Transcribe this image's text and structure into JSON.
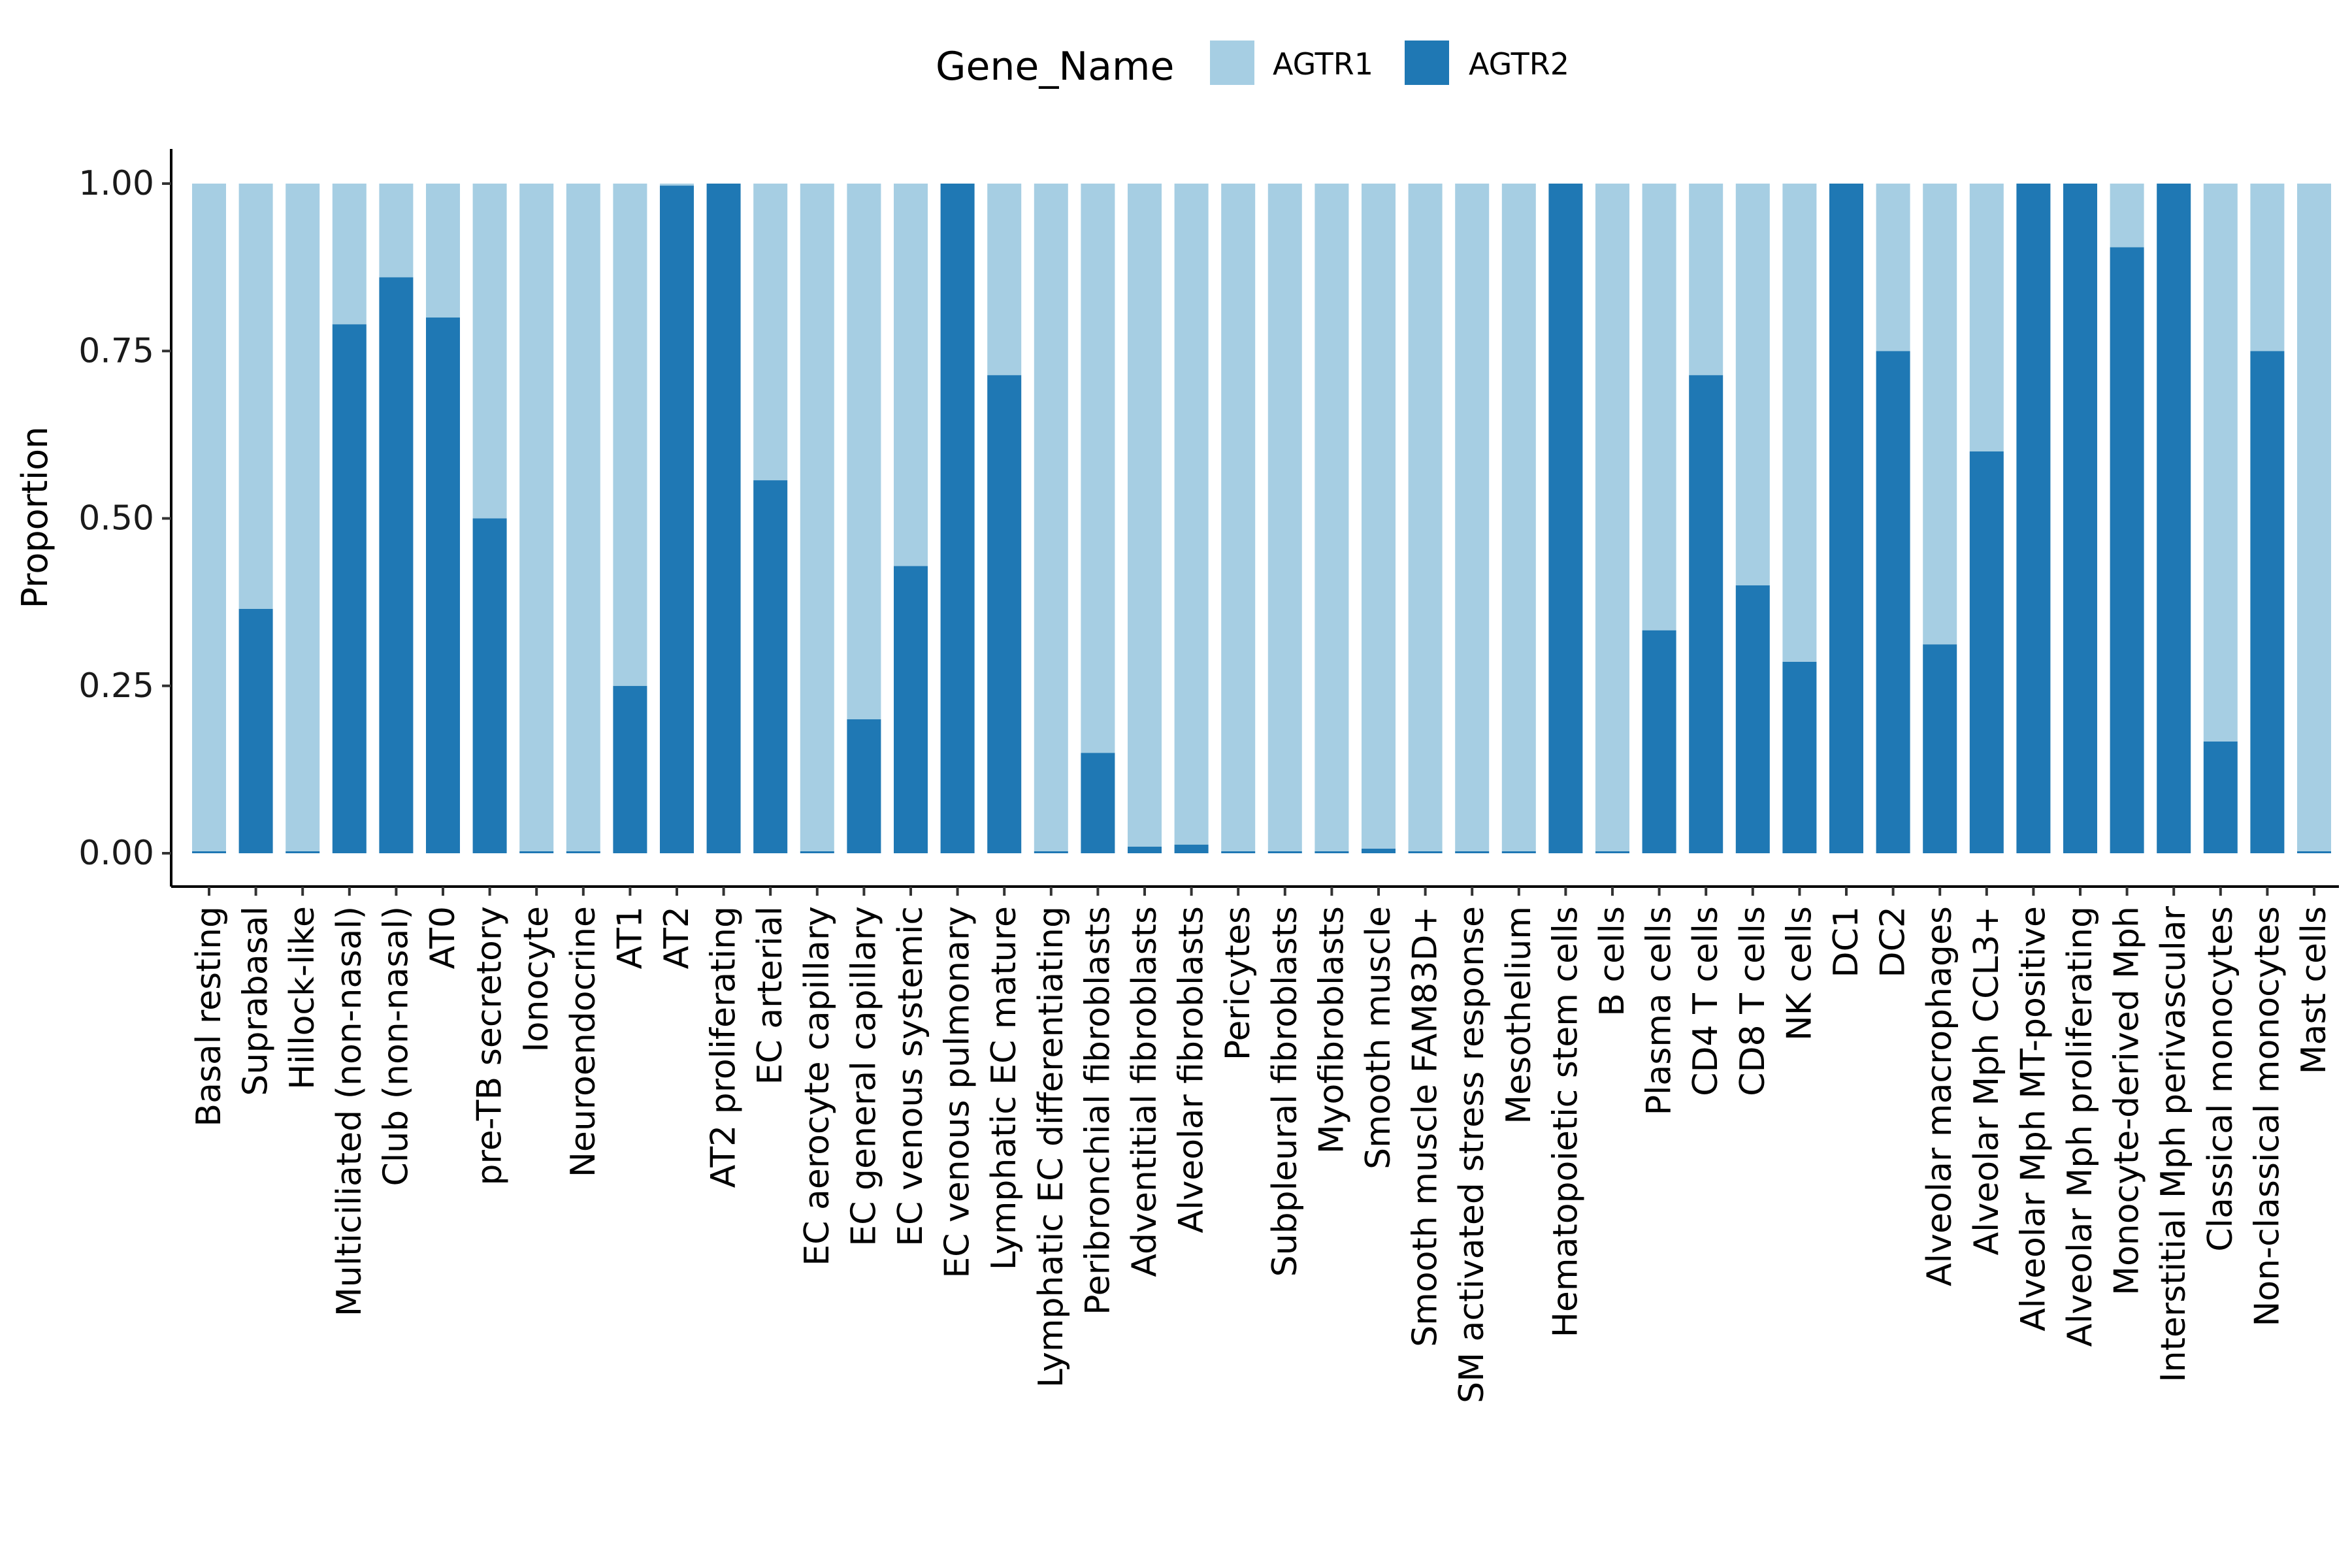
{
  "colors": {
    "AGTR1": "#A6CEE3",
    "AGTR2": "#1F78B4"
  },
  "chart_data": {
    "type": "bar",
    "stacked": true,
    "ylabel": "Proportion",
    "xlabel": "",
    "ylim": [
      0,
      1
    ],
    "yticks": [
      "0.00",
      "0.25",
      "0.50",
      "0.75",
      "1.00"
    ],
    "grid": false,
    "legend": {
      "title": "Gene_Name",
      "position": "top",
      "entries": [
        "AGTR1",
        "AGTR2"
      ]
    },
    "categories": [
      "Basal resting",
      "Suprabasal",
      "Hillock-like",
      "Multiciliated (non-nasal)",
      "Club (non-nasal)",
      "AT0",
      "pre-TB secretory",
      "Ionocyte",
      "Neuroendocrine",
      "AT1",
      "AT2",
      "AT2 proliferating",
      "EC arterial",
      "EC aerocyte capillary",
      "EC general capillary",
      "EC venous systemic",
      "EC venous pulmonary",
      "Lymphatic EC mature",
      "Lymphatic EC differentiating",
      "Peribronchial fibroblasts",
      "Adventitial fibroblasts",
      "Alveolar fibroblasts",
      "Pericytes",
      "Subpleural fibroblasts",
      "Myofibroblasts",
      "Smooth muscle",
      "Smooth muscle FAM83D+",
      "SM activated stress response",
      "Mesothelium",
      "Hematopoietic stem cells",
      "B cells",
      "Plasma cells",
      "CD4 T cells",
      "CD8 T cells",
      "NK cells",
      "DC1",
      "DC2",
      "Alveolar macrophages",
      "Alveolar Mph CCL3+",
      "Alveolar Mph MT-positive",
      "Alveolar Mph proliferating",
      "Monocyte-derived Mph",
      "Interstitial Mph perivascular",
      "Classical monocytes",
      "Non-classical monocytes",
      "Mast cells"
    ],
    "series": [
      {
        "name": "AGTR1",
        "values": [
          0.997,
          0.635,
          0.997,
          0.21,
          0.14,
          0.2,
          0.5,
          0.997,
          0.997,
          0.75,
          0.003,
          0.0,
          0.443,
          0.997,
          0.8,
          0.571,
          0.0,
          0.286,
          0.997,
          0.85,
          0.99,
          0.987,
          0.997,
          0.997,
          0.997,
          0.993,
          0.997,
          0.997,
          0.997,
          0.0,
          0.997,
          0.667,
          0.286,
          0.6,
          0.714,
          0.0,
          0.25,
          0.688,
          0.4,
          0.0,
          0.0,
          0.095,
          0.0,
          0.833,
          0.25,
          0.997
        ]
      },
      {
        "name": "AGTR2",
        "values": [
          0.003,
          0.365,
          0.003,
          0.79,
          0.86,
          0.8,
          0.5,
          0.003,
          0.003,
          0.25,
          0.997,
          1.0,
          0.557,
          0.003,
          0.2,
          0.429,
          1.0,
          0.714,
          0.003,
          0.15,
          0.01,
          0.013,
          0.003,
          0.003,
          0.003,
          0.007,
          0.003,
          0.003,
          0.003,
          1.0,
          0.003,
          0.333,
          0.714,
          0.4,
          0.286,
          1.0,
          0.75,
          0.312,
          0.6,
          1.0,
          1.0,
          0.905,
          1.0,
          0.167,
          0.75,
          0.003
        ]
      }
    ]
  }
}
